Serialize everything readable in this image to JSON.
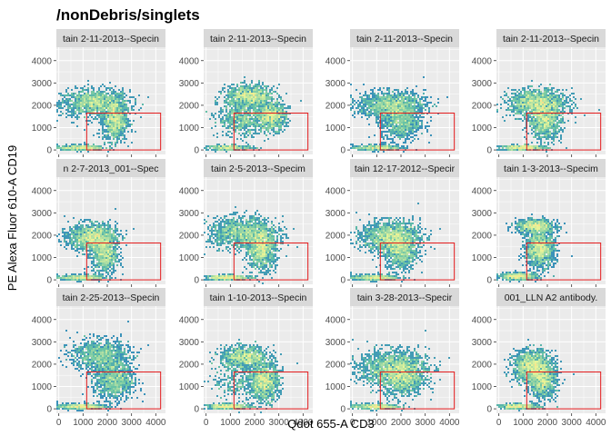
{
  "chart_data": {
    "type": "scatter",
    "subtype": "faceted 2D density / hexbin plot with rectangular gate",
    "title": "/nonDebris/singlets",
    "xlabel": "Qdot 655-A CD3",
    "ylabel": "PE Alexa Fluor 610-A CD19",
    "xlim": [
      -100,
      4400
    ],
    "ylim": [
      -200,
      4600
    ],
    "x_ticks": [
      0,
      1000,
      2000,
      3000,
      4000
    ],
    "x_tick_labels": [
      "0",
      "1000",
      "2000",
      "3000",
      "4000"
    ],
    "y_ticks": [
      0,
      1000,
      2000,
      3000,
      4000
    ],
    "y_tick_labels": [
      "0",
      "1000",
      "2000",
      "3000",
      "4000"
    ],
    "grid": true,
    "panel_background": "#ebebeb",
    "strip_background": "#d9d9d9",
    "gate_color": "#e41a1c",
    "density_palette": [
      "#5e4fa2",
      "#3288bd",
      "#66c2a5",
      "#abdda4",
      "#e6f598",
      "#fee08b"
    ],
    "facets": [
      {
        "label": "tain 2-11-2013--Specin",
        "gate": {
          "x": [
            1150,
            4200
          ],
          "y": [
            0,
            1650
          ]
        },
        "clusters": [
          {
            "x": 1500,
            "y": 2100,
            "sx": 700,
            "sy": 300,
            "w": 0.5
          },
          {
            "x": 2300,
            "y": 1300,
            "sx": 250,
            "sy": 450,
            "w": 0.35
          },
          {
            "x": 900,
            "y": 100,
            "sx": 500,
            "sy": 60,
            "w": 0.15
          }
        ]
      },
      {
        "label": "tain 2-11-2013--Specin",
        "gate": {
          "x": [
            1150,
            4200
          ],
          "y": [
            0,
            1650
          ]
        },
        "clusters": [
          {
            "x": 1800,
            "y": 2400,
            "sx": 500,
            "sy": 250,
            "w": 0.35
          },
          {
            "x": 2700,
            "y": 1500,
            "sx": 300,
            "sy": 300,
            "w": 0.3
          },
          {
            "x": 1500,
            "y": 1400,
            "sx": 500,
            "sy": 400,
            "w": 0.25
          },
          {
            "x": 1000,
            "y": 100,
            "sx": 500,
            "sy": 60,
            "w": 0.1
          }
        ]
      },
      {
        "label": "tain 2-11-2013--Specin",
        "gate": {
          "x": [
            1150,
            4200
          ],
          "y": [
            0,
            1650
          ]
        },
        "clusters": [
          {
            "x": 1600,
            "y": 2000,
            "sx": 700,
            "sy": 300,
            "w": 0.55
          },
          {
            "x": 2000,
            "y": 1200,
            "sx": 400,
            "sy": 400,
            "w": 0.3
          },
          {
            "x": 1000,
            "y": 100,
            "sx": 500,
            "sy": 60,
            "w": 0.15
          }
        ]
      },
      {
        "label": "tain 2-11-2013--Specin",
        "gate": {
          "x": [
            1150,
            4200
          ],
          "y": [
            0,
            1650
          ]
        },
        "clusters": [
          {
            "x": 1600,
            "y": 2100,
            "sx": 600,
            "sy": 300,
            "w": 0.5
          },
          {
            "x": 1900,
            "y": 1300,
            "sx": 350,
            "sy": 400,
            "w": 0.35
          },
          {
            "x": 1000,
            "y": 100,
            "sx": 500,
            "sy": 60,
            "w": 0.15
          }
        ]
      },
      {
        "label": "n 2-7-2013_001--Spec",
        "gate": {
          "x": [
            1150,
            4200
          ],
          "y": [
            0,
            1650
          ]
        },
        "clusters": [
          {
            "x": 1400,
            "y": 1900,
            "sx": 500,
            "sy": 300,
            "w": 0.55
          },
          {
            "x": 1900,
            "y": 1100,
            "sx": 250,
            "sy": 400,
            "w": 0.3
          },
          {
            "x": 900,
            "y": 100,
            "sx": 500,
            "sy": 60,
            "w": 0.15
          }
        ]
      },
      {
        "label": "tain 2-5-2013--Specim",
        "gate": {
          "x": [
            1150,
            4200
          ],
          "y": [
            0,
            1650
          ]
        },
        "clusters": [
          {
            "x": 1500,
            "y": 2100,
            "sx": 700,
            "sy": 350,
            "w": 0.45
          },
          {
            "x": 2300,
            "y": 1400,
            "sx": 300,
            "sy": 450,
            "w": 0.4
          },
          {
            "x": 900,
            "y": 100,
            "sx": 500,
            "sy": 60,
            "w": 0.15
          }
        ]
      },
      {
        "label": "tain 12-17-2012--Specir",
        "gate": {
          "x": [
            1150,
            4200
          ],
          "y": [
            0,
            1650
          ]
        },
        "clusters": [
          {
            "x": 1600,
            "y": 1900,
            "sx": 600,
            "sy": 350,
            "w": 0.6
          },
          {
            "x": 2000,
            "y": 1200,
            "sx": 300,
            "sy": 400,
            "w": 0.25
          },
          {
            "x": 900,
            "y": 100,
            "sx": 500,
            "sy": 60,
            "w": 0.15
          }
        ]
      },
      {
        "label": "tain 1-3-2013--Specim",
        "gate": {
          "x": [
            1150,
            4200
          ],
          "y": [
            0,
            1650
          ]
        },
        "clusters": [
          {
            "x": 1500,
            "y": 2400,
            "sx": 400,
            "sy": 150,
            "w": 0.3
          },
          {
            "x": 1700,
            "y": 1400,
            "sx": 300,
            "sy": 400,
            "w": 0.5
          },
          {
            "x": 800,
            "y": 150,
            "sx": 400,
            "sy": 80,
            "w": 0.2
          }
        ]
      },
      {
        "label": "tain 2-25-2013--Specin",
        "gate": {
          "x": [
            1150,
            4200
          ],
          "y": [
            0,
            1650
          ]
        },
        "clusters": [
          {
            "x": 1700,
            "y": 2400,
            "sx": 600,
            "sy": 350,
            "w": 0.4
          },
          {
            "x": 2300,
            "y": 1300,
            "sx": 400,
            "sy": 450,
            "w": 0.4
          },
          {
            "x": 900,
            "y": 100,
            "sx": 500,
            "sy": 60,
            "w": 0.2
          }
        ]
      },
      {
        "label": "tain 1-10-2013--Specin",
        "gate": {
          "x": [
            1150,
            4200
          ],
          "y": [
            0,
            1650
          ]
        },
        "clusters": [
          {
            "x": 1600,
            "y": 2300,
            "sx": 500,
            "sy": 250,
            "w": 0.35
          },
          {
            "x": 2400,
            "y": 1200,
            "sx": 300,
            "sy": 400,
            "w": 0.4
          },
          {
            "x": 1300,
            "y": 1200,
            "sx": 500,
            "sy": 400,
            "w": 0.1
          },
          {
            "x": 900,
            "y": 100,
            "sx": 500,
            "sy": 60,
            "w": 0.15
          }
        ]
      },
      {
        "label": "tain 3-28-2013--Specir",
        "gate": {
          "x": [
            1150,
            4200
          ],
          "y": [
            0,
            1650
          ]
        },
        "clusters": [
          {
            "x": 1700,
            "y": 1800,
            "sx": 700,
            "sy": 400,
            "w": 0.6
          },
          {
            "x": 2100,
            "y": 1300,
            "sx": 400,
            "sy": 400,
            "w": 0.25
          },
          {
            "x": 900,
            "y": 100,
            "sx": 500,
            "sy": 60,
            "w": 0.15
          }
        ]
      },
      {
        "label": "001_LLN A2 antibody.",
        "gate": {
          "x": [
            1150,
            4200
          ],
          "y": [
            0,
            1650
          ]
        },
        "clusters": [
          {
            "x": 1400,
            "y": 1900,
            "sx": 400,
            "sy": 350,
            "w": 0.55
          },
          {
            "x": 1800,
            "y": 1200,
            "sx": 300,
            "sy": 350,
            "w": 0.3
          },
          {
            "x": 800,
            "y": 100,
            "sx": 450,
            "sy": 60,
            "w": 0.15
          }
        ]
      }
    ]
  }
}
